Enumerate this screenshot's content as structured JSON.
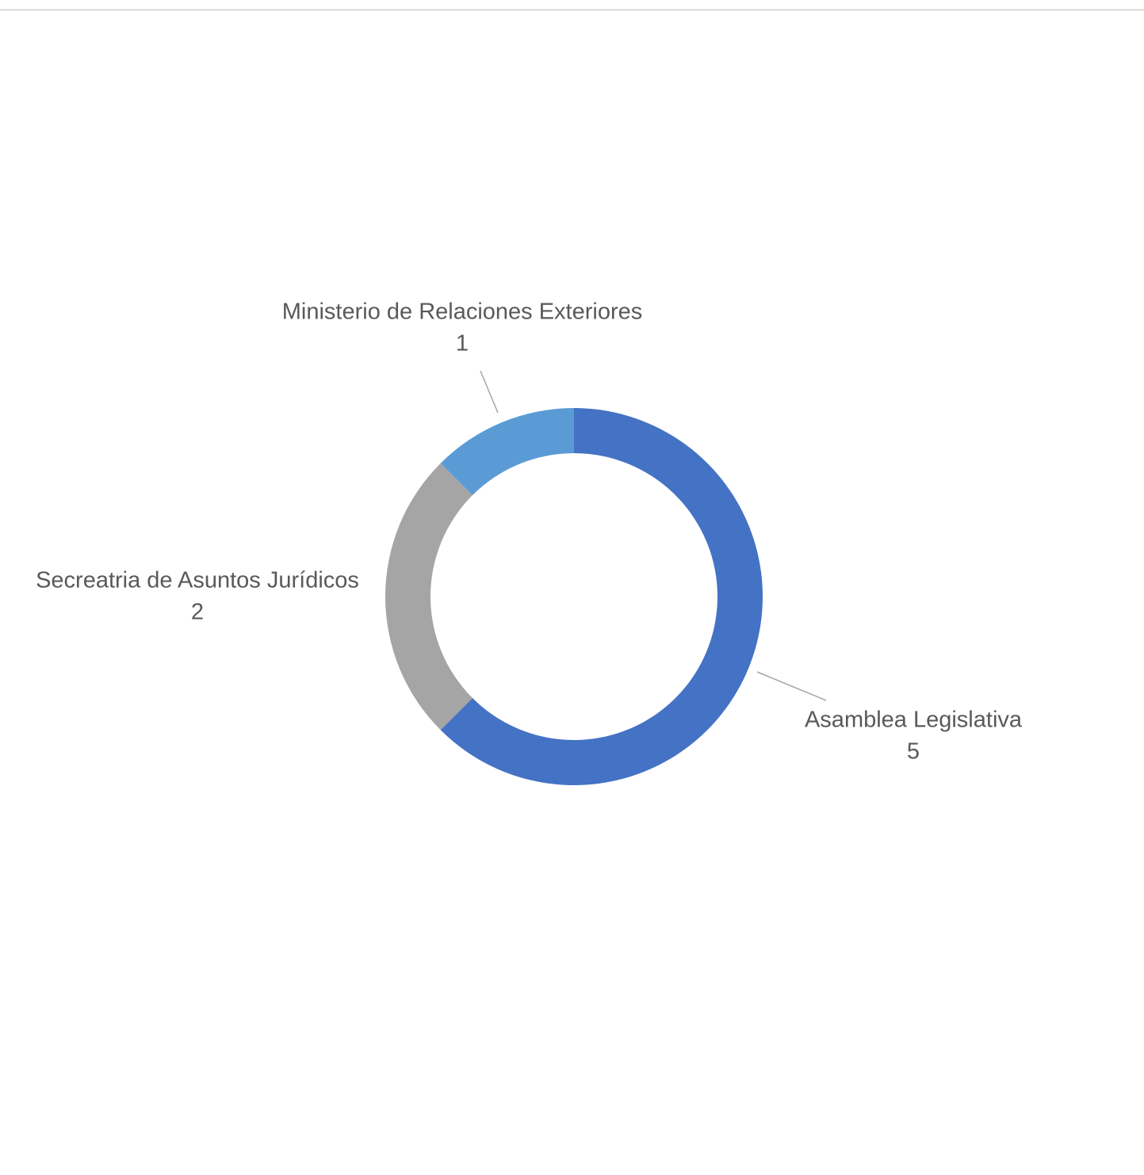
{
  "chart_data": {
    "type": "pie",
    "categories": [
      "Asamblea Legislativa",
      "Secreatria de Asuntos Jurídicos",
      "Ministerio de Relaciones Exteriores"
    ],
    "values": [
      5,
      2,
      1
    ],
    "colors": [
      "#4472c4",
      "#a5a5a5",
      "#5b9bd5"
    ]
  }
}
